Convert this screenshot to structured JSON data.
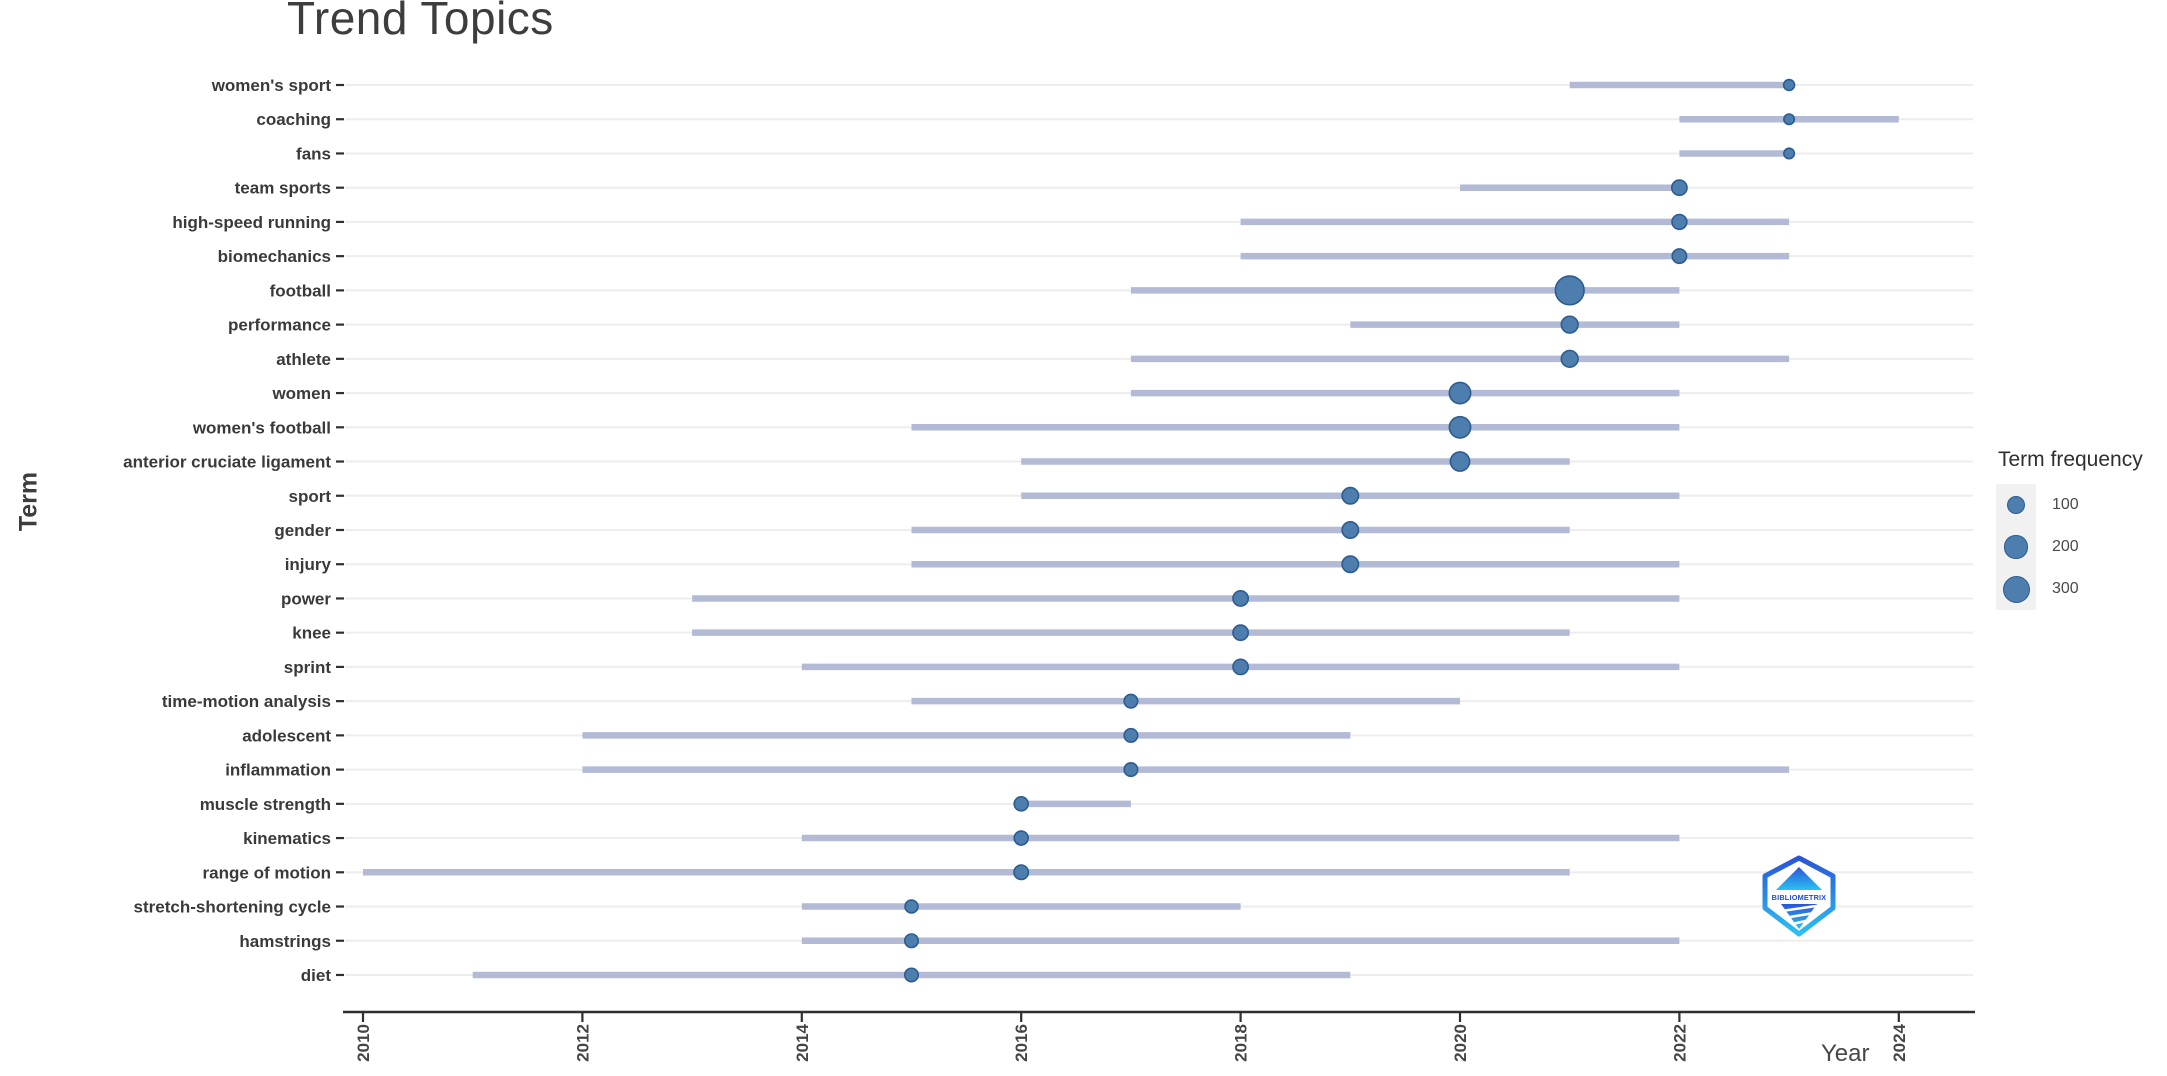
{
  "title": "Trend Topics",
  "axes": {
    "x_label": "Year",
    "y_label": "Term",
    "x_ticks": [
      2010,
      2012,
      2014,
      2016,
      2018,
      2020,
      2022,
      2024
    ],
    "x_range": [
      2009.8,
      2024.7
    ]
  },
  "legend": {
    "title": "Term frequency",
    "entries": [
      {
        "label": "100",
        "value": 100
      },
      {
        "label": "200",
        "value": 200
      },
      {
        "label": "300",
        "value": 300
      }
    ]
  },
  "logo": {
    "text": "BIBLIOMETRIX"
  },
  "colors": {
    "bubble_fill": "#4d7eae",
    "bubble_stroke": "#2b5c92",
    "range_line": "#b2bad6",
    "gridline": "#ededed",
    "axis_line": "#2f2f2f",
    "legend_key_bg": "#f1f1f1",
    "logo_blue_top": "#2a55d6",
    "logo_blue_bottom": "#2bc0f2"
  },
  "chart_data": {
    "type": "scatter",
    "title": "Trend Topics",
    "xlabel": "Year",
    "ylabel": "Term",
    "x_ticks": [
      2010,
      2012,
      2014,
      2016,
      2018,
      2020,
      2022,
      2024
    ],
    "xlim": [
      2009.8,
      2024.7
    ],
    "grid": "horizontal-only",
    "legend_position": "right",
    "note": "Each term has a horizontal range line (year_start to year_end) and a bubble at year_peak sized by estimated frequency",
    "terms": [
      {
        "term": "women's sport",
        "year_start": 2021,
        "year_peak": 2023,
        "year_end": 2023,
        "frequency": 18
      },
      {
        "term": "coaching",
        "year_start": 2022,
        "year_peak": 2023,
        "year_end": 2024,
        "frequency": 15
      },
      {
        "term": "fans",
        "year_start": 2022,
        "year_peak": 2023,
        "year_end": 2023,
        "frequency": 15
      },
      {
        "term": "team sports",
        "year_start": 2020,
        "year_peak": 2022,
        "year_end": 2022,
        "frequency": 60
      },
      {
        "term": "high-speed running",
        "year_start": 2018,
        "year_peak": 2022,
        "year_end": 2023,
        "frequency": 55
      },
      {
        "term": "biomechanics",
        "year_start": 2018,
        "year_peak": 2022,
        "year_end": 2023,
        "frequency": 50
      },
      {
        "term": "football",
        "year_start": 2017,
        "year_peak": 2021,
        "year_end": 2022,
        "frequency": 350
      },
      {
        "term": "performance",
        "year_start": 2019,
        "year_peak": 2021,
        "year_end": 2022,
        "frequency": 80
      },
      {
        "term": "athlete",
        "year_start": 2017,
        "year_peak": 2021,
        "year_end": 2023,
        "frequency": 80
      },
      {
        "term": "women",
        "year_start": 2017,
        "year_peak": 2020,
        "year_end": 2022,
        "frequency": 160
      },
      {
        "term": "women's football",
        "year_start": 2015,
        "year_peak": 2020,
        "year_end": 2022,
        "frequency": 160
      },
      {
        "term": "anterior cruciate ligament",
        "year_start": 2016,
        "year_peak": 2020,
        "year_end": 2021,
        "frequency": 120
      },
      {
        "term": "sport",
        "year_start": 2016,
        "year_peak": 2019,
        "year_end": 2022,
        "frequency": 75
      },
      {
        "term": "gender",
        "year_start": 2015,
        "year_peak": 2019,
        "year_end": 2021,
        "frequency": 75
      },
      {
        "term": "injury",
        "year_start": 2015,
        "year_peak": 2019,
        "year_end": 2022,
        "frequency": 75
      },
      {
        "term": "power",
        "year_start": 2013,
        "year_peak": 2018,
        "year_end": 2022,
        "frequency": 60
      },
      {
        "term": "knee",
        "year_start": 2013,
        "year_peak": 2018,
        "year_end": 2021,
        "frequency": 60
      },
      {
        "term": "sprint",
        "year_start": 2014,
        "year_peak": 2018,
        "year_end": 2022,
        "frequency": 60
      },
      {
        "term": "time-motion analysis",
        "year_start": 2015,
        "year_peak": 2017,
        "year_end": 2020,
        "frequency": 40
      },
      {
        "term": "adolescent",
        "year_start": 2012,
        "year_peak": 2017,
        "year_end": 2019,
        "frequency": 40
      },
      {
        "term": "inflammation",
        "year_start": 2012,
        "year_peak": 2017,
        "year_end": 2023,
        "frequency": 40
      },
      {
        "term": "muscle strength",
        "year_start": 2016,
        "year_peak": 2016,
        "year_end": 2017,
        "frequency": 45
      },
      {
        "term": "kinematics",
        "year_start": 2014,
        "year_peak": 2016,
        "year_end": 2022,
        "frequency": 45
      },
      {
        "term": "range of motion",
        "year_start": 2010,
        "year_peak": 2016,
        "year_end": 2021,
        "frequency": 50
      },
      {
        "term": "stretch-shortening cycle",
        "year_start": 2014,
        "year_peak": 2015,
        "year_end": 2018,
        "frequency": 35
      },
      {
        "term": "hamstrings",
        "year_start": 2014,
        "year_peak": 2015,
        "year_end": 2022,
        "frequency": 40
      },
      {
        "term": "diet",
        "year_start": 2011,
        "year_peak": 2015,
        "year_end": 2019,
        "frequency": 40
      }
    ]
  }
}
